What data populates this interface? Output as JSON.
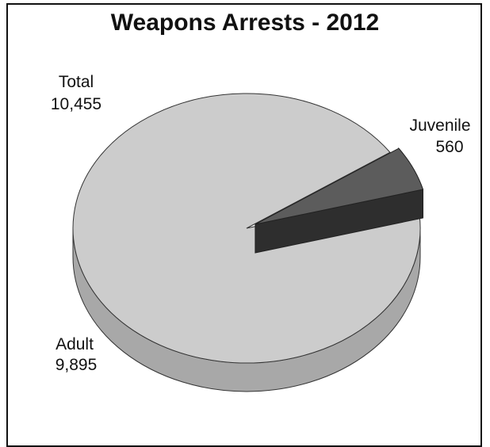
{
  "chart_data": {
    "type": "pie",
    "title": "Weapons Arrests - 2012",
    "total": {
      "label": "Total",
      "value": 10455,
      "display": "10,455"
    },
    "slices": [
      {
        "name": "Adult",
        "value": 9895,
        "display": "9,895",
        "color": "#cccccc",
        "side_color": "#a8a8a8",
        "exploded": false
      },
      {
        "name": "Juvenile",
        "value": 560,
        "display": "560",
        "color": "#5c5c5c",
        "side_color": "#3a3a3a",
        "exploded": true
      }
    ],
    "legend": "none",
    "grid": false
  }
}
